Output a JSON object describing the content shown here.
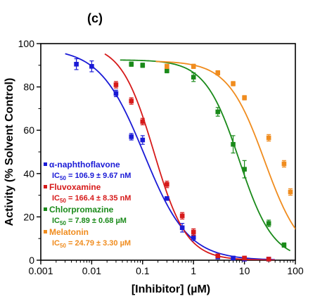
{
  "chart_data": {
    "type": "scatter",
    "title": "(c)",
    "xlabel": "[Inhibitor] (µM)",
    "ylabel": "Activity (% Solvent Control)",
    "x_scale": "log",
    "xlim": [
      0.001,
      100
    ],
    "ylim": [
      0,
      100
    ],
    "x_ticks": [
      {
        "value": 0.001,
        "label": "0.001"
      },
      {
        "value": 0.01,
        "label": "0.01"
      },
      {
        "value": 0.1,
        "label": "0.1"
      },
      {
        "value": 1,
        "label": "1"
      },
      {
        "value": 10,
        "label": "10"
      },
      {
        "value": 100,
        "label": "100"
      }
    ],
    "y_ticks": [
      {
        "value": 0,
        "label": "0"
      },
      {
        "value": 20,
        "label": "20"
      },
      {
        "value": 40,
        "label": "40"
      },
      {
        "value": 60,
        "label": "60"
      },
      {
        "value": 80,
        "label": "80"
      },
      {
        "value": 100,
        "label": "100"
      }
    ],
    "grid": false,
    "legend": "bottom-left",
    "series": [
      {
        "name": "α-naphthoflavone",
        "ic_text": " = 106.9 ± 9.67 nM",
        "color": "#1a1ad6",
        "x": [
          0.005,
          0.01,
          0.03,
          0.06,
          0.1,
          0.3,
          0.6,
          1,
          3,
          6,
          10,
          30
        ],
        "y": [
          90.5,
          89.5,
          77,
          57,
          55.5,
          28.5,
          15,
          10.5,
          1.5,
          1,
          0.5,
          0.5
        ],
        "err": [
          2.5,
          2.5,
          1.5,
          1.5,
          2,
          0.8,
          2,
          1.5,
          0.5,
          0.5,
          0.3,
          0.3
        ],
        "fit": {
          "top": 98,
          "bottom": 0,
          "ic50": 0.1069,
          "hill": 1.0
        }
      },
      {
        "name": "Fluvoxamine",
        "ic_text": " = 166.4 ± 8.35 nM",
        "color": "#d61a1a",
        "x": [
          0.03,
          0.06,
          0.1,
          0.3,
          0.6,
          1,
          3,
          10,
          30
        ],
        "y": [
          81,
          73.5,
          64,
          35,
          20.5,
          13,
          2,
          1,
          0.5
        ],
        "err": [
          1.5,
          1.5,
          1.5,
          1.5,
          1.5,
          1.5,
          0.5,
          0.3,
          0.3
        ],
        "fit": {
          "top": 100,
          "bottom": 0,
          "ic50": 0.1664,
          "hill": 1.35
        }
      },
      {
        "name": "Chlorpromazine",
        "ic_text": " = 7.89 ± 0.68 µM",
        "color": "#1a8a1a",
        "x": [
          0.06,
          0.1,
          0.3,
          1,
          3,
          6,
          10,
          30,
          60
        ],
        "y": [
          90.5,
          90,
          87.5,
          84.5,
          68.5,
          53.5,
          42,
          17,
          7
        ],
        "err": [
          1,
          1,
          1,
          2,
          2,
          4,
          4,
          1.5,
          1
        ],
        "fit": {
          "top": 92.5,
          "bottom": 0,
          "ic50": 7.89,
          "hill": 1.3
        }
      },
      {
        "name": "Melatonin",
        "ic_text": " = 24.79 ± 3.30 µM",
        "color": "#f08c1e",
        "x": [
          0.3,
          1,
          3,
          6,
          10,
          30,
          60,
          80
        ],
        "y": [
          89.5,
          89.5,
          86.5,
          81.5,
          75,
          56.5,
          44.5,
          31.5
        ],
        "err": [
          1,
          1,
          1,
          1,
          1,
          1.5,
          1.5,
          1.5
        ],
        "fit": {
          "top": 92,
          "bottom": 0,
          "ic50": 24.79,
          "hill": 1.2
        }
      }
    ]
  }
}
